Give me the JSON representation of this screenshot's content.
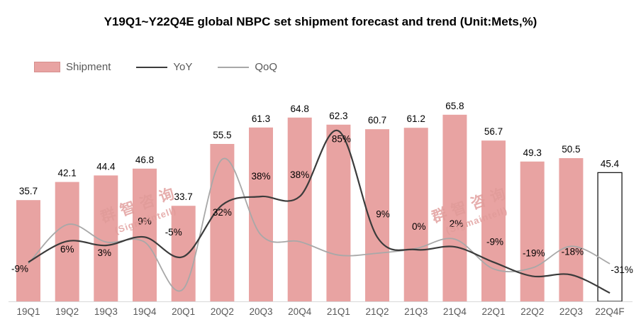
{
  "title": "Y19Q1~Y22Q4E global NBPC set shipment forecast and  trend (Unit:Mets,%)",
  "legend": [
    {
      "label": "Shipment",
      "type": "bar"
    },
    {
      "label": "YoY",
      "type": "line"
    },
    {
      "label": "QoQ",
      "type": "line"
    }
  ],
  "watermark": {
    "line1": "群智咨询",
    "line2": "(Sigmaintell)"
  },
  "colors": {
    "bar": "#e8a3a2",
    "bar_forecast_fill": "#ffffff",
    "bar_forecast_stroke": "#1a1a1a",
    "yoy_line": "#3b3b3b",
    "qoq_line": "#a8a8a8",
    "value_label": "#000000",
    "axis_label": "#595959",
    "axis_line": "#d9d9d9"
  },
  "chart_data": {
    "type": "bar",
    "categories": [
      "19Q1",
      "19Q2",
      "19Q3",
      "19Q4",
      "20Q1",
      "20Q2",
      "20Q3",
      "20Q4",
      "21Q1",
      "21Q2",
      "21Q3",
      "21Q4",
      "22Q1",
      "22Q2",
      "22Q3",
      "22Q4F"
    ],
    "series": [
      {
        "name": "Shipment",
        "type": "bar",
        "values": [
          35.7,
          42.1,
          44.4,
          46.8,
          33.7,
          55.5,
          61.3,
          64.8,
          62.3,
          60.7,
          61.2,
          65.8,
          56.7,
          49.3,
          50.5,
          45.4
        ],
        "last_is_forecast": true
      },
      {
        "name": "YoY",
        "type": "line",
        "values_pct": [
          -9,
          6,
          3,
          9,
          -5,
          32,
          38,
          38,
          85,
          9,
          0,
          2,
          -9,
          -19,
          -18,
          -31
        ],
        "labels": [
          "-9%",
          "6%",
          "3%",
          "9%",
          "-5%",
          "32%",
          "38%",
          "38%",
          "85%",
          "9%",
          "0%",
          "2%",
          "-9%",
          "-19%",
          "-18%",
          "-31%"
        ]
      },
      {
        "name": "QoQ",
        "type": "line",
        "values_pct": [
          -10,
          17.9,
          5.5,
          5.4,
          -28,
          64.7,
          10.5,
          5.7,
          -3.9,
          -2.6,
          0.8,
          7.5,
          -13.8,
          -13.1,
          2.4,
          -10.1
        ],
        "labels": []
      }
    ],
    "title": "Y19Q1~Y22Q4E global NBPC set shipment forecast and  trend (Unit:Mets,%)",
    "xlabel": "",
    "ylabel": "",
    "y_axis_visible": false,
    "secondary_axis_range_implied": [
      -40,
      100
    ],
    "grid": false,
    "legend_position": "top-left"
  }
}
